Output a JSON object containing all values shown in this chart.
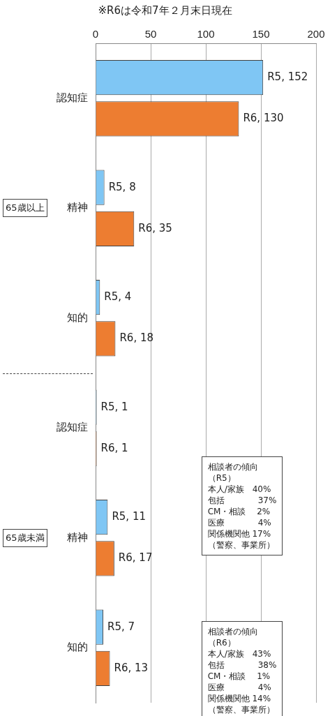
{
  "chart_data": {
    "type": "bar",
    "orientation": "horizontal",
    "categories": [
      "認知症",
      "精神",
      "知的",
      "認知症",
      "精神",
      "知的"
    ],
    "series": [
      {
        "color": "#7fc6f4",
        "values": [
          152,
          8,
          4,
          1,
          11,
          7
        ],
        "value_labels": [
          "R5, 152",
          "R5, 8",
          "R5, 4",
          "R5, 1",
          "R5, 11",
          "R5, 7"
        ]
      },
      {
        "color": "#ed7d31",
        "values": [
          130,
          35,
          18,
          1,
          17,
          13
        ],
        "value_labels": [
          "R6, 130",
          "R6, 35",
          "R6, 18",
          "R6, 1",
          "R6, 17",
          "R6, 13"
        ]
      }
    ],
    "xlim": [
      0,
      200
    ],
    "xticks": [
      0,
      50,
      100,
      150,
      200
    ],
    "grid": "x",
    "legend": false,
    "annotations": [
      "※R6は令和7年２月末日現在",
      "65歳以上",
      "65歳未満",
      "相談者の傾向",
      "（R5）",
      "本人/家族　40%",
      "包括　　　　37%",
      "CM・相談　 2%",
      "医療　　　　4%",
      "関係機関他 17%",
      "（警察、事業所）",
      "相談者の傾向",
      "（R6）",
      "本人/家族　43%",
      "包括　　　　38%",
      "CM・相談　 1%",
      "医療　　　　4%",
      "関係機関他 14%",
      "（警察、事業所）"
    ]
  }
}
